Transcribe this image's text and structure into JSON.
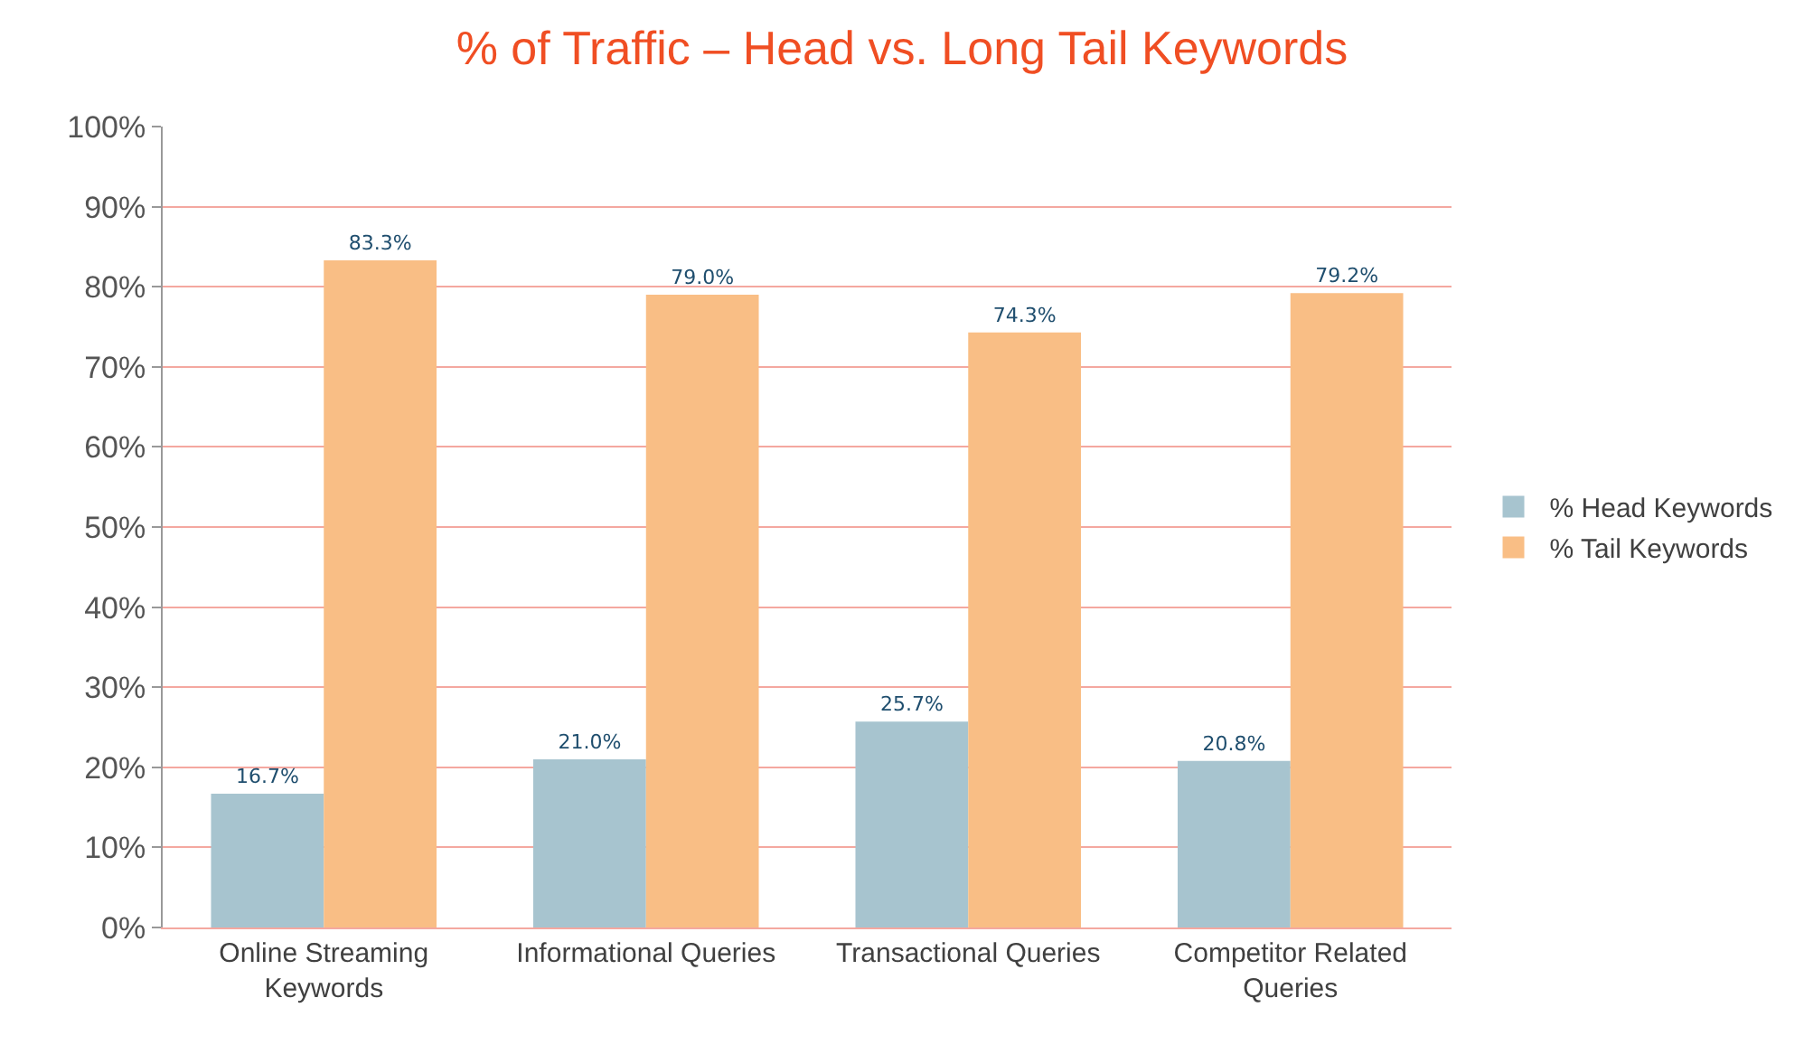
{
  "chart_data": {
    "type": "bar",
    "title": "% of Traffic – Head vs. Long Tail Keywords",
    "categories": [
      "Online Streaming Keywords",
      "Informational Queries",
      "Transactional Queries",
      "Competitor Related Queries"
    ],
    "series": [
      {
        "name": "% Head Keywords",
        "color": "#a7c4cf",
        "values": [
          16.7,
          21.0,
          25.7,
          20.8
        ],
        "value_labels": [
          "16.7%",
          "21.0%",
          "25.7%",
          "20.8%"
        ]
      },
      {
        "name": "% Tail Keywords",
        "color": "#f9be85",
        "values": [
          83.3,
          79.0,
          74.3,
          79.2
        ],
        "value_labels": [
          "83.3%",
          "79.0%",
          "74.3%",
          "79.2%"
        ]
      }
    ],
    "ylim": [
      0,
      100
    ],
    "yticks": [
      {
        "value": 0,
        "label": "0%"
      },
      {
        "value": 10,
        "label": "10%"
      },
      {
        "value": 20,
        "label": "20%"
      },
      {
        "value": 30,
        "label": "30%"
      },
      {
        "value": 40,
        "label": "40%"
      },
      {
        "value": 50,
        "label": "50%"
      },
      {
        "value": 60,
        "label": "60%"
      },
      {
        "value": 70,
        "label": "70%"
      },
      {
        "value": 80,
        "label": "80%"
      },
      {
        "value": 90,
        "label": "90%"
      },
      {
        "value": 100,
        "label": "100%"
      }
    ],
    "grid": "y",
    "legend": "right"
  }
}
